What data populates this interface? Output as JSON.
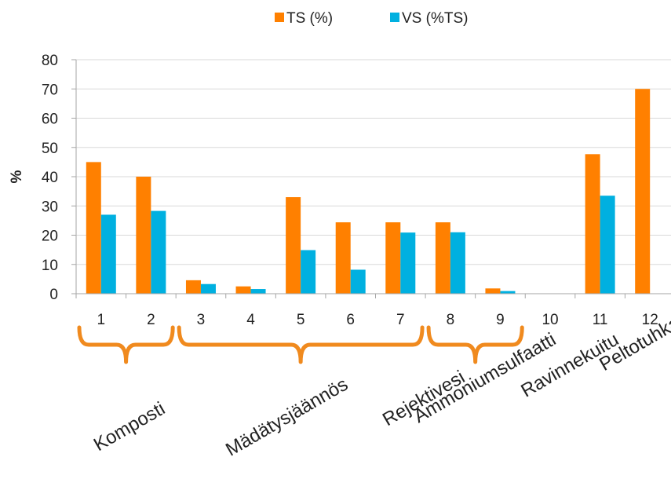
{
  "chart_data": {
    "type": "bar",
    "categories": [
      "1",
      "2",
      "3",
      "4",
      "5",
      "6",
      "7",
      "8",
      "9",
      "10",
      "11",
      "12"
    ],
    "series": [
      {
        "name": "TS (%)",
        "color": "#ff8000",
        "values": [
          45,
          40,
          4.6,
          2.5,
          33,
          24.4,
          24.4,
          24.4,
          1.8,
          0,
          47.7,
          70
        ]
      },
      {
        "name": "VS (%TS)",
        "color": "#00b0e0",
        "values": [
          27,
          28.3,
          3.3,
          1.6,
          14.9,
          8.2,
          20.9,
          21,
          0.9,
          0,
          33.5,
          null
        ]
      }
    ],
    "ylabel": "%",
    "ylim": [
      0,
      80
    ],
    "yticks": [
      0,
      10,
      20,
      30,
      40,
      50,
      60,
      70,
      80
    ],
    "grid": true,
    "legend_position": "top",
    "groups": [
      {
        "label": "Komposti",
        "from": 1,
        "to": 2,
        "bracket": true
      },
      {
        "label": "Mädätysjäännös",
        "from": 3,
        "to": 7,
        "bracket": true
      },
      {
        "label": "Rejektivesi",
        "from": 8,
        "to": 9,
        "bracket": true
      },
      {
        "label": "Ammoniumsulfaatti",
        "from": 10,
        "to": 10,
        "bracket": false
      },
      {
        "label": "Ravinnekuitu",
        "from": 11,
        "to": 11,
        "bracket": false
      },
      {
        "label": "Peltotuhka",
        "from": 12,
        "to": 12,
        "bracket": false
      }
    ],
    "bracket_color": "#f08a1e",
    "grid_color": "#d9d9d9",
    "axis_color": "#a6a6a6"
  }
}
